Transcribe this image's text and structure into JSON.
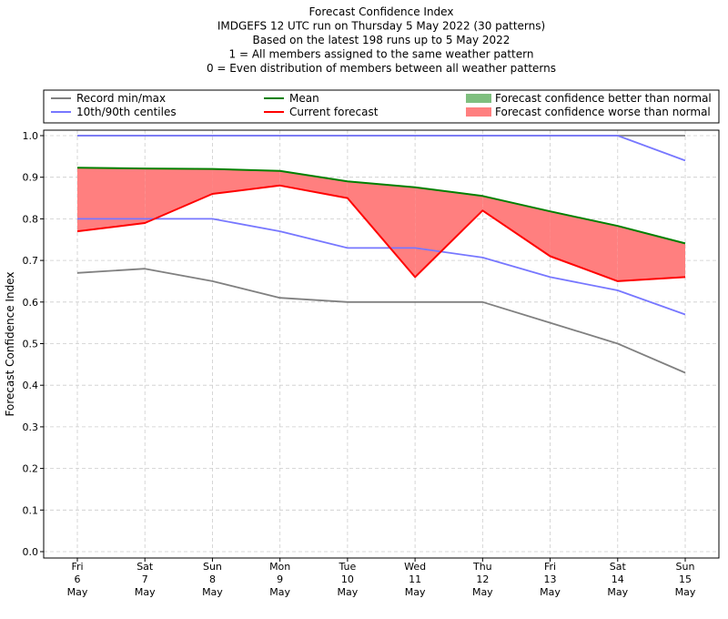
{
  "chart_data": {
    "type": "line",
    "title_lines": [
      "Forecast Confidence Index",
      "IMDGEFS 12 UTC run on Thursday 5 May 2022 (30 patterns)",
      "Based on the latest 198 runs up to 5 May 2022",
      "1 = All members assigned to the same weather pattern",
      "0 = Even distribution of members between all weather patterns"
    ],
    "ylabel": "Forecast Confidence Index",
    "ylim": [
      0.0,
      1.0
    ],
    "yticks": [
      "0.0",
      "0.1",
      "0.2",
      "0.3",
      "0.4",
      "0.5",
      "0.6",
      "0.7",
      "0.8",
      "0.9",
      "1.0"
    ],
    "categories": [
      [
        "Fri",
        "6",
        "May"
      ],
      [
        "Sat",
        "7",
        "May"
      ],
      [
        "Sun",
        "8",
        "May"
      ],
      [
        "Mon",
        "9",
        "May"
      ],
      [
        "Tue",
        "10",
        "May"
      ],
      [
        "Wed",
        "11",
        "May"
      ],
      [
        "Thu",
        "12",
        "May"
      ],
      [
        "Fri",
        "13",
        "May"
      ],
      [
        "Sat",
        "14",
        "May"
      ],
      [
        "Sun",
        "15",
        "May"
      ]
    ],
    "grid": true,
    "legend": [
      {
        "label": "Record min/max",
        "kind": "line",
        "color": "#808080"
      },
      {
        "label": "10th/90th centiles",
        "kind": "line",
        "color": "#7777ff"
      },
      {
        "label": "Mean",
        "kind": "line",
        "color": "#008000"
      },
      {
        "label": "Current forecast",
        "kind": "line",
        "color": "#ff0000"
      },
      {
        "label": "Forecast confidence better than normal",
        "kind": "patch",
        "color": "#7fbf7f"
      },
      {
        "label": "Forecast confidence worse than normal",
        "kind": "patch",
        "color": "#ff7f7f"
      }
    ],
    "series": [
      {
        "name": "Record max",
        "color": "#808080",
        "values": [
          1.0,
          1.0,
          1.0,
          1.0,
          1.0,
          1.0,
          1.0,
          1.0,
          1.0,
          1.0
        ]
      },
      {
        "name": "Record min",
        "color": "#808080",
        "values": [
          0.67,
          0.68,
          0.65,
          0.61,
          0.6,
          0.6,
          0.6,
          0.55,
          0.5,
          0.43
        ]
      },
      {
        "name": "90th centile",
        "color": "#7777ff",
        "values": [
          1.0,
          1.0,
          1.0,
          1.0,
          1.0,
          1.0,
          1.0,
          1.0,
          1.0,
          0.94
        ]
      },
      {
        "name": "10th centile",
        "color": "#7777ff",
        "values": [
          0.8,
          0.8,
          0.8,
          0.77,
          0.73,
          0.73,
          0.707,
          0.66,
          0.628,
          0.57
        ]
      },
      {
        "name": "Mean",
        "color": "#008000",
        "values": [
          0.923,
          0.921,
          0.92,
          0.915,
          0.89,
          0.876,
          0.855,
          0.818,
          0.783,
          0.741
        ]
      },
      {
        "name": "Current forecast",
        "color": "#ff0000",
        "values": [
          0.77,
          0.79,
          0.86,
          0.88,
          0.85,
          0.66,
          0.82,
          0.71,
          0.65,
          0.66
        ]
      }
    ]
  }
}
